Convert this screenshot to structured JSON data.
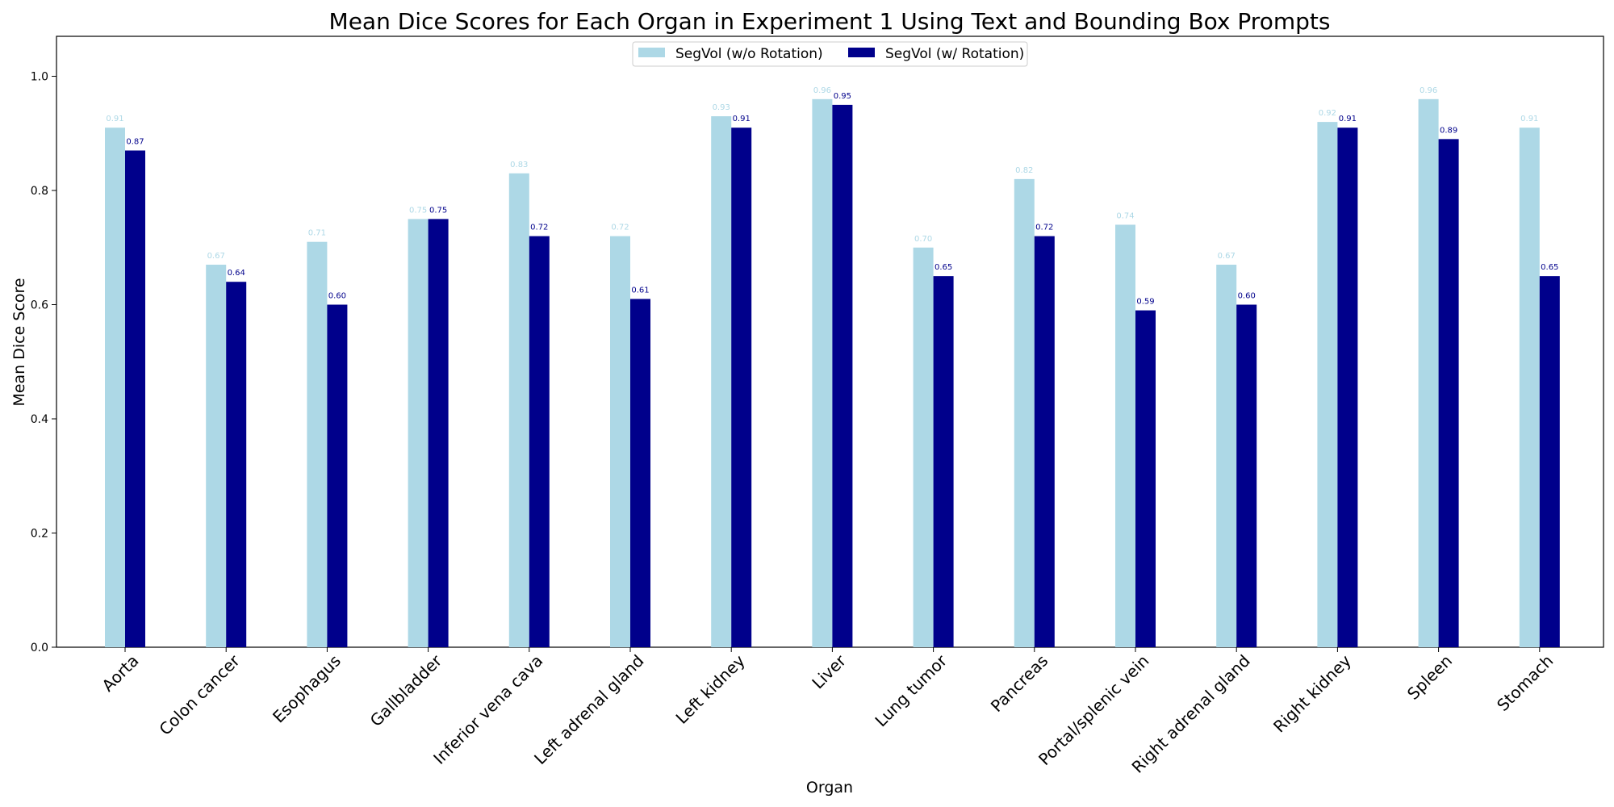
{
  "chart_data": {
    "type": "bar",
    "title": "Mean Dice Scores for Each Organ in Experiment 1 Using Text and Bounding Box Prompts",
    "xlabel": "Organ",
    "ylabel": "Mean Dice Score",
    "ylim": [
      0,
      1.07
    ],
    "yticks": [
      "0.0",
      "0.2",
      "0.4",
      "0.6",
      "0.8",
      "1.0"
    ],
    "grid": false,
    "legend_position": "top-center",
    "categories": [
      "Aorta",
      "Colon cancer",
      "Esophagus",
      "Gallbladder",
      "Inferior vena cava",
      "Left adrenal gland",
      "Left kidney",
      "Liver",
      "Lung tumor",
      "Pancreas",
      "Portal/splenic vein",
      "Right adrenal gland",
      "Right kidney",
      "Spleen",
      "Stomach"
    ],
    "series": [
      {
        "name": "SegVol (w/o Rotation)",
        "color": "#add8e6",
        "values": [
          0.91,
          0.67,
          0.71,
          0.75,
          0.83,
          0.72,
          0.93,
          0.96,
          0.7,
          0.82,
          0.74,
          0.67,
          0.92,
          0.96,
          0.91
        ],
        "labels": [
          "0.91",
          "0.67",
          "0.71",
          "0.75",
          "0.83",
          "0.72",
          "0.93",
          "0.96",
          "0.70",
          "0.82",
          "0.74",
          "0.67",
          "0.92",
          "0.96",
          "0.91"
        ]
      },
      {
        "name": "SegVol (w/ Rotation)",
        "color": "#00008b",
        "values": [
          0.87,
          0.64,
          0.6,
          0.75,
          0.72,
          0.61,
          0.91,
          0.95,
          0.65,
          0.72,
          0.59,
          0.6,
          0.91,
          0.89,
          0.65
        ],
        "labels": [
          "0.87",
          "0.64",
          "0.60",
          "0.75",
          "0.72",
          "0.61",
          "0.91",
          "0.95",
          "0.65",
          "0.72",
          "0.59",
          "0.60",
          "0.91",
          "0.89",
          "0.65"
        ]
      }
    ]
  }
}
